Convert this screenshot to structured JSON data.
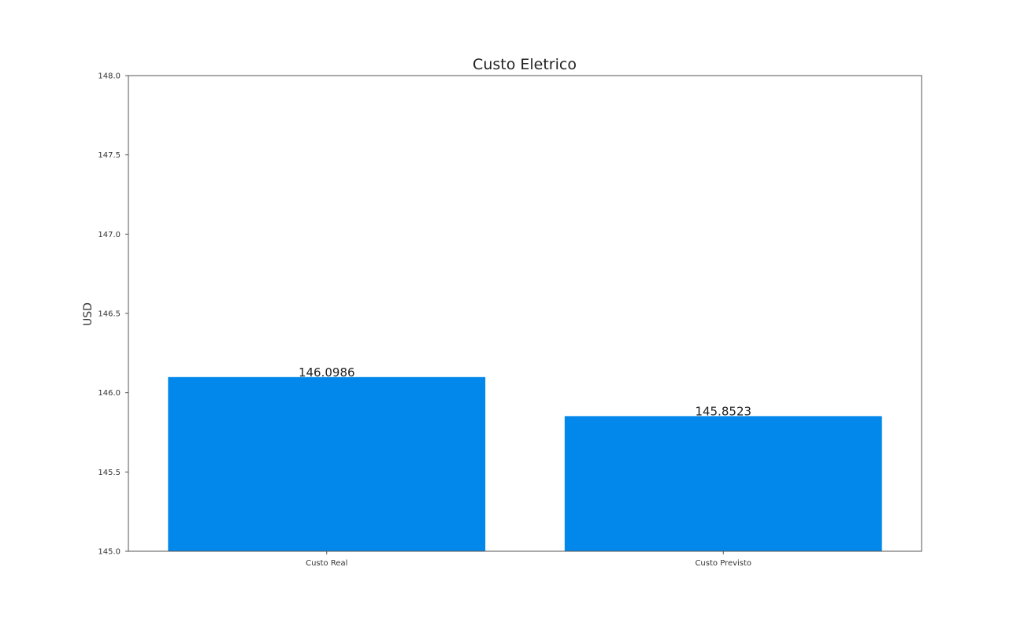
{
  "chart_data": {
    "type": "bar",
    "title": "Custo Eletrico",
    "xlabel": "",
    "ylabel": "USD",
    "categories": [
      "Custo Real",
      "Custo Previsto"
    ],
    "values": [
      146.0986,
      145.8523
    ],
    "data_labels": [
      "146.0986",
      "145.8523"
    ],
    "ylim": [
      145.0,
      148.0
    ],
    "yticks": [
      145.0,
      145.5,
      146.0,
      146.5,
      147.0,
      147.5,
      148.0
    ],
    "ytick_labels": [
      "145.0",
      "145.5",
      "146.0",
      "146.5",
      "147.0",
      "147.5",
      "148.0"
    ],
    "grid": false,
    "bar_color": "#0288ea"
  }
}
